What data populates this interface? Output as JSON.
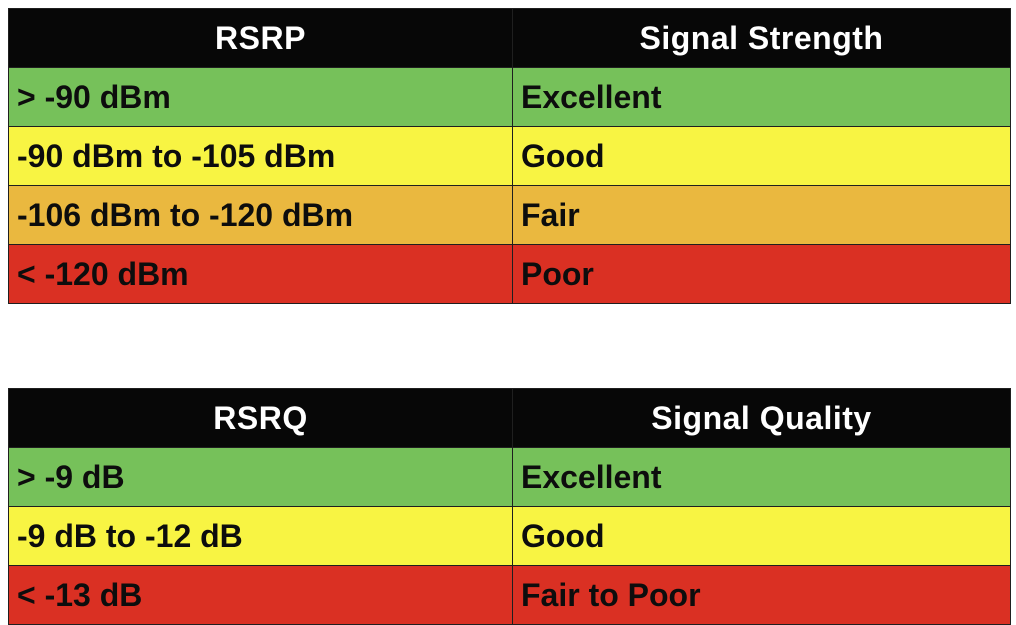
{
  "colors": {
    "header_bg": "#070707",
    "header_text": "#ffffff",
    "excellent_green": "#76c15a",
    "good_yellow": "#f8f443",
    "fair_orange": "#eab83f",
    "poor_red": "#da3023",
    "cell_text": "#0d0d0d",
    "border": "#1f1f1f",
    "page_background": "#ffffff"
  },
  "chart_data": [
    {
      "type": "table",
      "title": "RSRP signal strength reference",
      "columns": [
        "RSRP",
        "Signal Strength"
      ],
      "rows": [
        {
          "range": "> -90 dBm",
          "rating": "Excellent",
          "row_color": "#76c15a"
        },
        {
          "range": "-90 dBm to -105 dBm",
          "rating": "Good",
          "row_color": "#f8f443"
        },
        {
          "range": "-106 dBm to -120 dBm",
          "rating": "Fair",
          "row_color": "#eab83f"
        },
        {
          "range": "< -120 dBm",
          "rating": "Poor",
          "row_color": "#da3023"
        }
      ]
    },
    {
      "type": "table",
      "title": "RSRQ signal quality reference",
      "columns": [
        "RSRQ",
        "Signal Quality"
      ],
      "rows": [
        {
          "range": "> -9 dB",
          "rating": "Excellent",
          "row_color": "#76c15a"
        },
        {
          "range": "-9 dB to -12 dB",
          "rating": "Good",
          "row_color": "#f8f443"
        },
        {
          "range": "< -13 dB",
          "rating": "Fair to Poor",
          "row_color": "#da3023"
        }
      ]
    }
  ]
}
